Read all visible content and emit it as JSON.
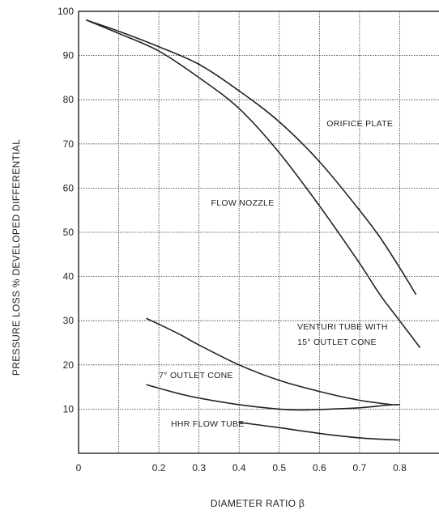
{
  "chart_data": {
    "type": "line",
    "xlabel": "DIAMETER RATIO β",
    "ylabel": "PRESSURE LOSS % DEVELOPED DIFFERENTIAL",
    "xlim": [
      0,
      0.9
    ],
    "ylim": [
      0,
      100
    ],
    "xticks": [
      "0",
      "0.2",
      "0.3",
      "0.4",
      "0.5",
      "0.6",
      "0.7",
      "0.8"
    ],
    "yticks": [
      "100",
      "90",
      "80",
      "70",
      "60",
      "50",
      "40",
      "30",
      "20",
      "10"
    ],
    "grid": true,
    "legend": "none",
    "series": [
      {
        "name": "ORIFICE PLATE",
        "x": [
          0.02,
          0.1,
          0.2,
          0.3,
          0.4,
          0.5,
          0.6,
          0.7,
          0.75,
          0.8,
          0.84
        ],
        "y": [
          98,
          95.5,
          92,
          88,
          82,
          75,
          66,
          55,
          49,
          42,
          36
        ]
      },
      {
        "name": "FLOW NOZZLE",
        "x": [
          0.02,
          0.1,
          0.2,
          0.3,
          0.4,
          0.5,
          0.6,
          0.7,
          0.75,
          0.8,
          0.85
        ],
        "y": [
          98,
          95,
          91,
          85,
          78,
          68,
          56,
          43,
          36,
          30,
          24
        ]
      },
      {
        "name": "VENTURI TUBE WITH 15° OUTLET CONE",
        "x": [
          0.17,
          0.25,
          0.3,
          0.4,
          0.5,
          0.6,
          0.7,
          0.78
        ],
        "y": [
          30.5,
          27,
          24.5,
          20,
          16.5,
          14,
          12,
          11
        ]
      },
      {
        "name": "7° OUTLET CONE",
        "x": [
          0.17,
          0.25,
          0.3,
          0.4,
          0.5,
          0.55,
          0.6,
          0.7,
          0.77,
          0.8
        ],
        "y": [
          15.5,
          13.5,
          12.5,
          11,
          10,
          9.8,
          9.9,
          10.3,
          10.9,
          11
        ]
      },
      {
        "name": "HHR FLOW TUBE",
        "x": [
          0.4,
          0.5,
          0.6,
          0.7,
          0.8
        ],
        "y": [
          7,
          5.8,
          4.5,
          3.5,
          3
        ]
      }
    ],
    "annotations": [
      {
        "text": "ORIFICE PLATE",
        "x": 0.618,
        "y": 74
      },
      {
        "text": "FLOW NOZZLE",
        "x": 0.33,
        "y": 56
      },
      {
        "text": "VENTURI TUBE WITH",
        "x": 0.545,
        "y": 28
      },
      {
        "text": "15° OUTLET CONE",
        "x": 0.545,
        "y": 24.5
      },
      {
        "text": "7° OUTLET CONE",
        "x": 0.2,
        "y": 17
      },
      {
        "text": "HHR FLOW TUBE",
        "x": 0.23,
        "y": 6
      }
    ]
  }
}
